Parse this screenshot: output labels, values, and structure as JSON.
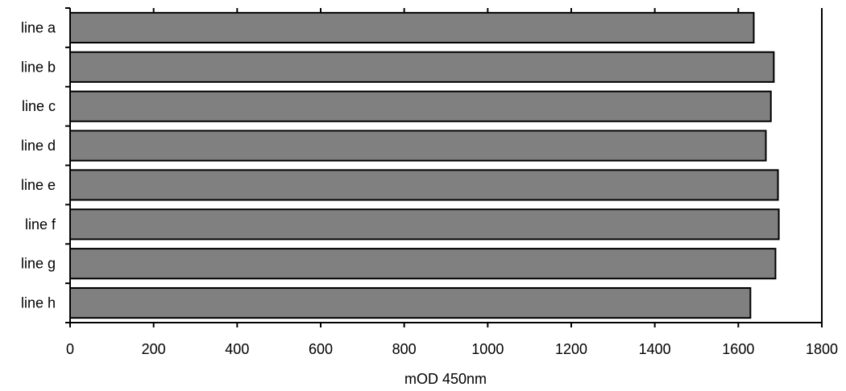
{
  "chart_data": {
    "type": "bar",
    "orientation": "horizontal",
    "categories": [
      "line a",
      "line b",
      "line c",
      "line d",
      "line e",
      "line f",
      "line g",
      "line h"
    ],
    "values": [
      1637,
      1685,
      1678,
      1666,
      1695,
      1697,
      1689,
      1629
    ],
    "xlabel": "mOD 450nm",
    "ylabel": "",
    "xlim": [
      0,
      1800
    ],
    "xticks": [
      "0",
      "200",
      "400",
      "600",
      "800",
      "1000",
      "1200",
      "1400",
      "1600",
      "1800"
    ],
    "grid": false,
    "legend": "none",
    "colors": {
      "bar_fill": "#808080",
      "bar_stroke": "#000000",
      "axis": "#000000"
    }
  }
}
